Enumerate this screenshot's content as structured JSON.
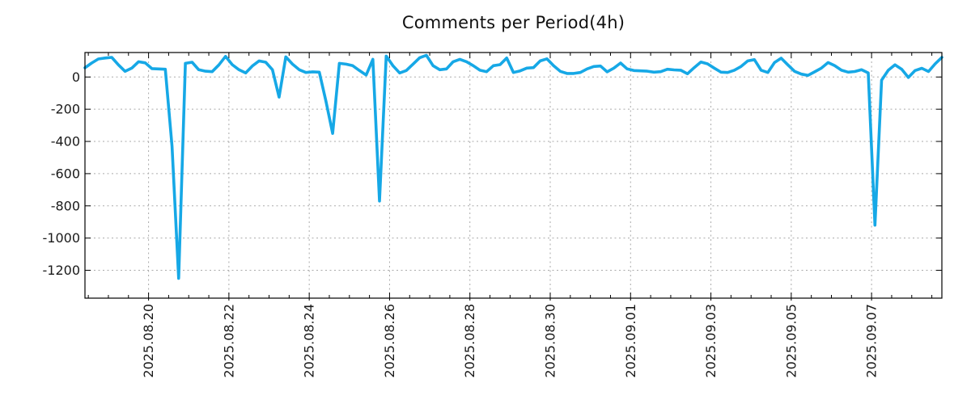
{
  "chart": {
    "colors": {
      "line": "#16a8e6",
      "grid": "#aaaaaa",
      "axis": "#000000",
      "text": "#1a1a1a",
      "background": "#ffffff"
    }
  },
  "chart_data": {
    "type": "line",
    "title": "Comments per Period(4h)",
    "xlabel": "",
    "ylabel": "",
    "grid": "dotted",
    "legend_position": "none",
    "x_start": "2025-08-18 10:00",
    "x_step_hours": 4,
    "xlim": [
      "2025-08-18 10:00",
      "2025-09-08 18:00"
    ],
    "ylim": [
      -1373,
      152
    ],
    "x_tick_labels": [
      "2025.08.20",
      "2025.08.22",
      "2025.08.24",
      "2025.08.26",
      "2025.08.28",
      "2025.08.30",
      "2025.09.01",
      "2025.09.03",
      "2025.09.05",
      "2025.09.07"
    ],
    "x_minor_tick_hours": 12,
    "y_ticks": [
      0,
      -200,
      -400,
      -600,
      -800,
      -1000,
      -1200
    ],
    "y_tick_labels": [
      "0",
      "-200",
      "-400",
      "-600",
      "-800",
      "-1000",
      "-1200"
    ],
    "series": [
      {
        "name": "comments",
        "values": [
          57,
          87,
          112,
          118,
          122,
          75,
          35,
          55,
          95,
          88,
          52,
          50,
          48,
          -430,
          -1250,
          85,
          92,
          45,
          36,
          33,
          75,
          128,
          77,
          45,
          25,
          68,
          100,
          92,
          45,
          -125,
          125,
          80,
          45,
          28,
          32,
          30,
          -150,
          -350,
          85,
          80,
          70,
          40,
          12,
          110,
          -770,
          130,
          70,
          25,
          40,
          80,
          120,
          135,
          70,
          45,
          50,
          95,
          110,
          95,
          70,
          42,
          33,
          70,
          77,
          118,
          28,
          38,
          55,
          58,
          100,
          113,
          70,
          35,
          22,
          22,
          28,
          50,
          65,
          68,
          32,
          55,
          87,
          50,
          40,
          38,
          36,
          30,
          33,
          48,
          44,
          42,
          20,
          58,
          93,
          82,
          55,
          30,
          28,
          42,
          65,
          100,
          108,
          42,
          28,
          90,
          117,
          75,
          35,
          18,
          10,
          32,
          55,
          90,
          70,
          42,
          30,
          34,
          45,
          25,
          -920,
          -20,
          42,
          76,
          48,
          -3,
          40,
          54,
          34,
          82,
          122
        ]
      }
    ]
  }
}
